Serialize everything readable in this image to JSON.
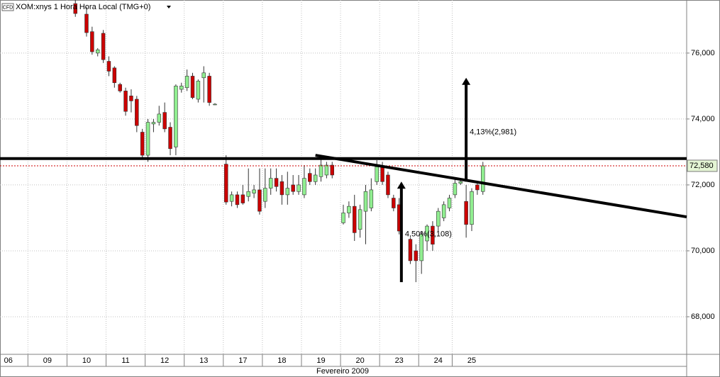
{
  "chart_data": {
    "type": "candlestick",
    "title": "XOM:xnys 1 Hora Hora Local (TMG+0)",
    "icon_label": "CFD",
    "x_axis_label": "Fevereiro 2009",
    "xlim": [
      -0.5,
      122.5
    ],
    "ylim": [
      66.86,
      77.61
    ],
    "yticks": [
      {
        "value": 68,
        "label": "68,000"
      },
      {
        "value": 70,
        "label": "70,000"
      },
      {
        "value": 72,
        "label": "72,000"
      },
      {
        "value": 74,
        "label": "74,000"
      },
      {
        "value": 76,
        "label": "76,000"
      }
    ],
    "xticks": [
      {
        "value": 1,
        "label": "06"
      },
      {
        "value": 8,
        "label": "09"
      },
      {
        "value": 15,
        "label": "10"
      },
      {
        "value": 22,
        "label": "11"
      },
      {
        "value": 29,
        "label": "12"
      },
      {
        "value": 36,
        "label": "13"
      },
      {
        "value": 43,
        "label": "17"
      },
      {
        "value": 50,
        "label": "18"
      },
      {
        "value": 57,
        "label": "19"
      },
      {
        "value": 64,
        "label": "20"
      },
      {
        "value": 71,
        "label": "23"
      },
      {
        "value": 78,
        "label": "24"
      },
      {
        "value": 84,
        "label": "25"
      }
    ],
    "grid": true,
    "up_color": "#90ee90",
    "down_color": "#cc0000",
    "x": [
      13,
      15,
      16,
      17,
      18,
      19,
      20,
      21,
      22,
      23,
      24,
      25,
      26,
      27,
      28,
      29,
      30,
      31,
      32,
      33,
      34,
      35,
      36,
      37,
      38,
      40,
      41,
      42,
      43,
      44,
      45,
      46,
      47,
      48,
      49,
      50,
      51,
      52,
      53,
      54,
      55,
      56,
      57,
      58,
      59,
      61,
      62,
      63,
      64,
      65,
      66,
      67,
      68,
      69,
      70,
      71,
      73,
      74,
      75,
      76,
      77,
      78,
      79,
      80,
      81,
      82,
      83,
      84,
      85,
      86
    ],
    "open": [
      77.5,
      77.18,
      76.65,
      76.0,
      76.6,
      75.75,
      75.55,
      75.05,
      74.85,
      74.7,
      74.6,
      73.6,
      72.9,
      73.85,
      73.9,
      74.2,
      73.75,
      73.15,
      74.9,
      74.95,
      75.3,
      74.6,
      75.25,
      75.3,
      74.45,
      72.63,
      71.5,
      71.7,
      71.7,
      71.65,
      71.75,
      71.85,
      71.5,
      71.9,
      72.2,
      72.1,
      71.7,
      72.0,
      71.8,
      71.7,
      72.35,
      72.1,
      72.25,
      72.3,
      72.6,
      70.85,
      71.15,
      71.35,
      70.65,
      71.2,
      71.3,
      72.1,
      72.55,
      72.3,
      71.6,
      71.4,
      70.35,
      70.0,
      69.7,
      70.3,
      70.75,
      70.75,
      71.0,
      71.3,
      71.7,
      72.05,
      71.5,
      70.8,
      72.0,
      71.8
    ],
    "high": [
      77.7,
      77.4,
      76.8,
      76.15,
      76.7,
      75.9,
      75.6,
      75.1,
      74.95,
      74.9,
      74.7,
      73.7,
      74.0,
      74.0,
      74.4,
      74.5,
      73.9,
      75.05,
      75.1,
      75.5,
      75.4,
      75.2,
      75.6,
      75.4,
      74.48,
      72.9,
      71.8,
      71.8,
      72.0,
      72.5,
      72.0,
      72.5,
      72.5,
      72.5,
      72.5,
      72.3,
      72.4,
      72.3,
      72.3,
      72.6,
      72.5,
      72.5,
      72.8,
      72.7,
      72.7,
      71.4,
      71.5,
      71.7,
      71.4,
      72.0,
      72.2,
      72.75,
      72.7,
      72.4,
      71.7,
      71.6,
      70.4,
      70.2,
      70.6,
      70.8,
      70.9,
      71.3,
      71.5,
      71.7,
      72.2,
      72.15,
      72.0,
      71.9,
      72.1,
      72.7
    ],
    "low": [
      77.1,
      76.5,
      75.95,
      75.9,
      75.7,
      75.3,
      74.95,
      74.8,
      74.1,
      74.2,
      73.6,
      72.8,
      72.7,
      73.6,
      73.8,
      73.6,
      72.9,
      72.9,
      74.8,
      74.85,
      74.6,
      74.5,
      74.5,
      74.4,
      74.42,
      71.4,
      71.35,
      71.3,
      71.4,
      71.5,
      71.6,
      71.1,
      71.3,
      71.7,
      71.8,
      71.4,
      71.4,
      71.7,
      71.7,
      71.6,
      72.0,
      72.0,
      72.1,
      72.2,
      72.2,
      70.8,
      71.0,
      70.3,
      70.4,
      70.2,
      71.2,
      72.0,
      72.0,
      71.6,
      71.2,
      70.5,
      69.6,
      69.05,
      69.3,
      70.0,
      70.0,
      70.6,
      70.9,
      71.2,
      71.6,
      72.0,
      70.4,
      70.6,
      71.7,
      71.7
    ],
    "close": [
      77.2,
      76.62,
      76.04,
      76.1,
      75.8,
      75.45,
      75.1,
      74.85,
      74.23,
      74.55,
      73.8,
      72.9,
      73.9,
      73.9,
      74.15,
      73.7,
      73.1,
      75.0,
      75.0,
      75.3,
      74.65,
      75.15,
      75.4,
      74.5,
      74.45,
      71.48,
      71.7,
      71.4,
      71.45,
      71.8,
      71.85,
      71.2,
      71.9,
      72.2,
      71.95,
      71.7,
      71.9,
      71.8,
      72.0,
      72.2,
      72.1,
      72.3,
      72.6,
      72.6,
      72.3,
      71.15,
      71.35,
      70.55,
      71.25,
      71.8,
      71.85,
      72.55,
      72.1,
      71.7,
      71.3,
      70.6,
      69.7,
      69.7,
      70.5,
      70.75,
      70.2,
      71.2,
      71.4,
      71.6,
      72.05,
      72.1,
      70.8,
      71.8,
      71.85,
      72.58
    ],
    "last_price": {
      "value": 72.58,
      "label": "72,580"
    },
    "hline": 72.8,
    "trendline": {
      "x": [
        56,
        122.5
      ],
      "y": [
        72.9,
        71.03
      ]
    },
    "arrows": [
      {
        "x": 71.4,
        "from": 69.05,
        "to": 72.1,
        "label": "4,50%(3,108)",
        "label_y": 70.5
      },
      {
        "x": 83,
        "from": 72.1,
        "to": 75.25,
        "label": "4,13%(2,981)",
        "label_y": 73.6
      }
    ]
  }
}
